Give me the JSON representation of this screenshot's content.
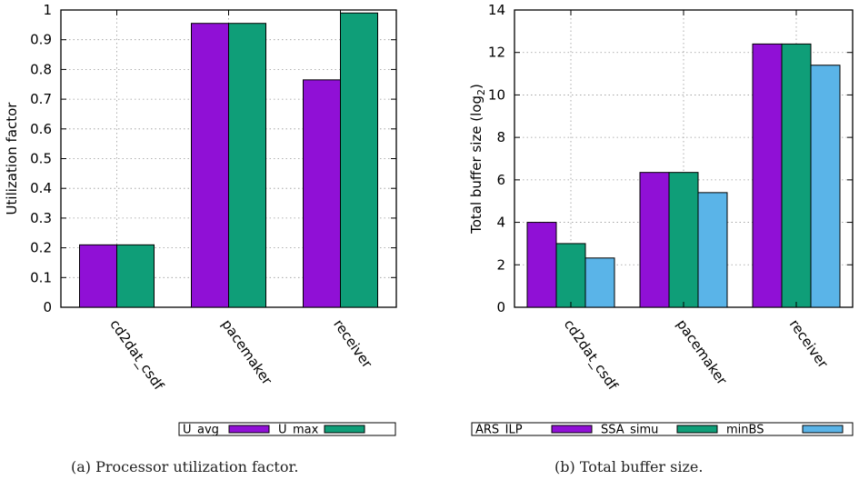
{
  "chart_data": [
    {
      "type": "bar",
      "categories": [
        "cd2dat_csdf",
        "pacemaker",
        "receiver"
      ],
      "series": [
        {
          "name": "U_avg",
          "color": "#9010d6",
          "values": [
            0.21,
            0.955,
            0.765
          ]
        },
        {
          "name": "U_max",
          "color": "#0f9e78",
          "values": [
            0.21,
            0.955,
            0.99
          ]
        }
      ],
      "ylabel": "Utilization factor",
      "ylim": [
        0,
        1
      ],
      "yticks": [
        "0",
        "0.1",
        "0.2",
        "0.3",
        "0.4",
        "0.5",
        "0.6",
        "0.7",
        "0.8",
        "0.9",
        "1"
      ],
      "grid": true,
      "legend_position": "bottom"
    },
    {
      "type": "bar",
      "categories": [
        "cd2dat_csdf",
        "pacemaker",
        "receiver"
      ],
      "series": [
        {
          "name": "ARS_ILP",
          "color": "#9010d6",
          "values": [
            4.0,
            6.35,
            12.4
          ]
        },
        {
          "name": "SSA_simu",
          "color": "#0f9e78",
          "values": [
            3.0,
            6.35,
            12.4
          ]
        },
        {
          "name": "minBS",
          "color": "#5ab4e8",
          "values": [
            2.32,
            5.4,
            11.4
          ]
        }
      ],
      "ylabel_main": "Total buffer size (log",
      "ylabel_sub": "2",
      "ylabel_end": ")",
      "ylim": [
        0,
        14
      ],
      "yticks": [
        "0",
        "2",
        "4",
        "6",
        "8",
        "10",
        "12",
        "14"
      ],
      "grid": true,
      "legend_position": "bottom"
    }
  ],
  "captions": {
    "a": "(a) Processor utilization factor.",
    "b": "(b) Total buffer size."
  }
}
